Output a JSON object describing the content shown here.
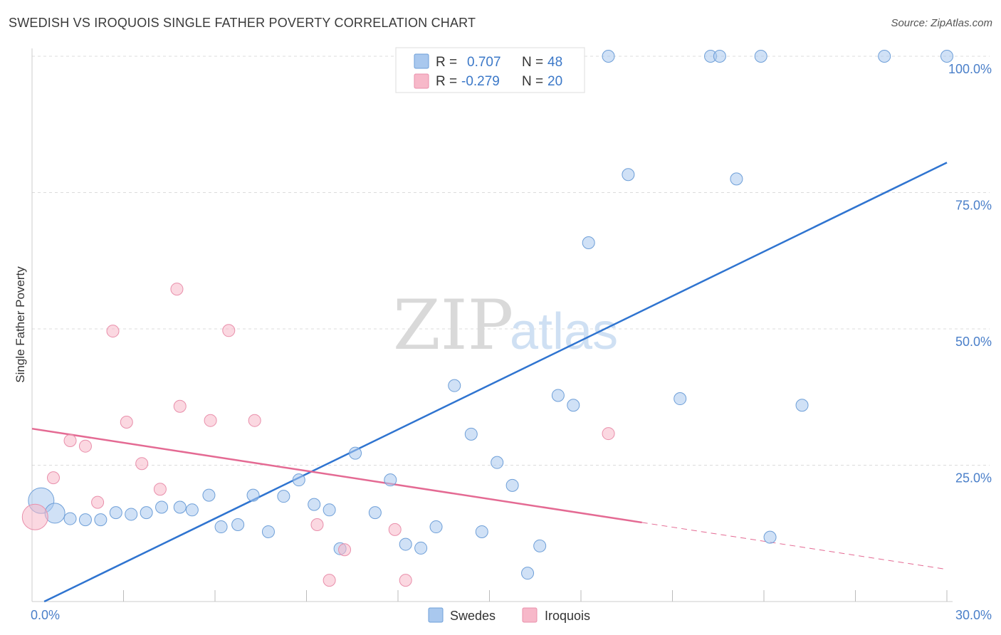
{
  "header": {
    "title": "SWEDISH VS IROQUOIS SINGLE FATHER POVERTY CORRELATION CHART",
    "source": "Source: ZipAtlas.com"
  },
  "watermark": {
    "zip": "ZIP",
    "atlas": "atlas"
  },
  "legend_box": {
    "rows": [
      {
        "r_label": "R =",
        "r_value": "0.707",
        "n_label": "N =",
        "n_value": "48",
        "color": "#a9c8ee"
      },
      {
        "r_label": "R =",
        "r_value": "-0.279",
        "n_label": "N =",
        "n_value": "20",
        "color": "#f7b8c9"
      }
    ]
  },
  "bottom_legend": {
    "items": [
      {
        "label": "Swedes",
        "color": "#a9c8ee"
      },
      {
        "label": "Iroquois",
        "color": "#f7b8c9"
      }
    ]
  },
  "chart_data": {
    "type": "scatter",
    "title": "SWEDISH VS IROQUOIS SINGLE FATHER POVERTY CORRELATION CHART",
    "xlabel": "",
    "ylabel": "Single Father Poverty",
    "xlim": [
      0,
      30
    ],
    "ylim": [
      0,
      100
    ],
    "x_tick_labels": [
      "0.0%",
      "30.0%"
    ],
    "y_tick_labels": [
      "100.0%",
      "75.0%",
      "50.0%",
      "25.0%"
    ],
    "y_ticks": [
      100,
      75,
      50,
      25
    ],
    "grid": true,
    "legend_position": "top-center",
    "series": [
      {
        "name": "Swedes",
        "color": "#a9c8ee",
        "stroke": "#6e9fd8",
        "line_color": "#2f74d0",
        "trend": {
          "x": [
            0.4,
            30
          ],
          "y": [
            0,
            80.5
          ],
          "dashed_from": null
        },
        "points": [
          {
            "x": 0.3,
            "y": 18.5,
            "big": 2
          },
          {
            "x": 0.75,
            "y": 16.2,
            "big": 1
          },
          {
            "x": 1.25,
            "y": 15.2
          },
          {
            "x": 1.75,
            "y": 15.0
          },
          {
            "x": 2.25,
            "y": 15.0
          },
          {
            "x": 2.75,
            "y": 16.3
          },
          {
            "x": 3.25,
            "y": 16.0
          },
          {
            "x": 3.75,
            "y": 16.3
          },
          {
            "x": 4.25,
            "y": 17.3
          },
          {
            "x": 4.85,
            "y": 17.3
          },
          {
            "x": 5.25,
            "y": 16.8
          },
          {
            "x": 5.8,
            "y": 19.5
          },
          {
            "x": 6.2,
            "y": 13.7
          },
          {
            "x": 6.75,
            "y": 14.1
          },
          {
            "x": 7.25,
            "y": 19.5
          },
          {
            "x": 7.75,
            "y": 12.8
          },
          {
            "x": 8.25,
            "y": 19.3
          },
          {
            "x": 8.75,
            "y": 22.3
          },
          {
            "x": 9.25,
            "y": 17.8
          },
          {
            "x": 9.75,
            "y": 16.8
          },
          {
            "x": 10.1,
            "y": 9.7
          },
          {
            "x": 10.6,
            "y": 27.2
          },
          {
            "x": 11.25,
            "y": 16.3
          },
          {
            "x": 11.75,
            "y": 22.3
          },
          {
            "x": 12.25,
            "y": 10.5
          },
          {
            "x": 12.75,
            "y": 9.8
          },
          {
            "x": 13.25,
            "y": 13.7
          },
          {
            "x": 13.85,
            "y": 39.6
          },
          {
            "x": 14.4,
            "y": 30.7
          },
          {
            "x": 14.75,
            "y": 12.8
          },
          {
            "x": 15.25,
            "y": 25.5
          },
          {
            "x": 15.75,
            "y": 21.3
          },
          {
            "x": 16.25,
            "y": 5.2
          },
          {
            "x": 16.65,
            "y": 10.2
          },
          {
            "x": 17.25,
            "y": 37.8
          },
          {
            "x": 17.75,
            "y": 36.0
          },
          {
            "x": 18.25,
            "y": 65.8
          },
          {
            "x": 18.9,
            "y": 100
          },
          {
            "x": 19.55,
            "y": 78.3
          },
          {
            "x": 21.25,
            "y": 37.2
          },
          {
            "x": 22.25,
            "y": 100
          },
          {
            "x": 22.55,
            "y": 100
          },
          {
            "x": 23.1,
            "y": 77.5
          },
          {
            "x": 23.9,
            "y": 100
          },
          {
            "x": 24.2,
            "y": 11.8
          },
          {
            "x": 25.25,
            "y": 36.0
          },
          {
            "x": 27.95,
            "y": 100
          },
          {
            "x": 30.0,
            "y": 100
          }
        ]
      },
      {
        "name": "Iroquois",
        "color": "#f7b8c9",
        "stroke": "#e98fab",
        "line_color": "#e46a93",
        "trend": {
          "x": [
            0,
            30
          ],
          "y": [
            31.7,
            5.9
          ],
          "dashed_from": 20.0
        },
        "points": [
          {
            "x": 0.1,
            "y": 15.5,
            "big": 2
          },
          {
            "x": 0.7,
            "y": 22.7
          },
          {
            "x": 1.25,
            "y": 29.5
          },
          {
            "x": 1.75,
            "y": 28.5
          },
          {
            "x": 2.15,
            "y": 18.2
          },
          {
            "x": 2.65,
            "y": 49.6
          },
          {
            "x": 3.1,
            "y": 32.9
          },
          {
            "x": 3.6,
            "y": 25.3
          },
          {
            "x": 4.2,
            "y": 20.6
          },
          {
            "x": 4.75,
            "y": 57.3
          },
          {
            "x": 4.85,
            "y": 35.8
          },
          {
            "x": 5.85,
            "y": 33.2
          },
          {
            "x": 6.45,
            "y": 49.7
          },
          {
            "x": 7.3,
            "y": 33.2
          },
          {
            "x": 9.35,
            "y": 14.1
          },
          {
            "x": 9.75,
            "y": 3.9
          },
          {
            "x": 10.25,
            "y": 9.5
          },
          {
            "x": 11.9,
            "y": 13.2
          },
          {
            "x": 12.25,
            "y": 3.9
          },
          {
            "x": 18.9,
            "y": 30.8
          }
        ]
      }
    ]
  }
}
